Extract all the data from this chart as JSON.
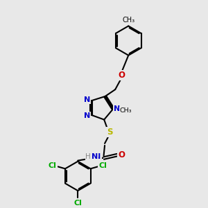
{
  "bg_color": "#e8e8e8",
  "bond_color": "#000000",
  "n_color": "#0000cc",
  "o_color": "#cc0000",
  "s_color": "#b8b800",
  "cl_color": "#00aa00",
  "line_width": 1.5,
  "figsize": [
    3.0,
    3.0
  ],
  "dpi": 100,
  "xlim": [
    0,
    10
  ],
  "ylim": [
    0,
    10
  ]
}
